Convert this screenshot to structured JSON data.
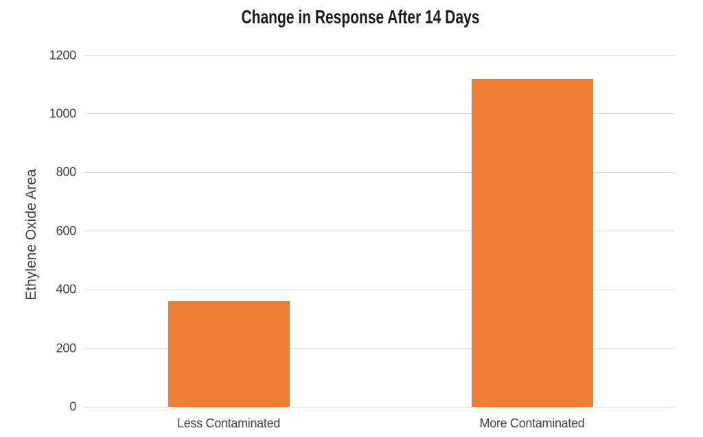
{
  "chart_data": {
    "type": "bar",
    "title": "Change in Response After 14 Days",
    "xlabel": "",
    "ylabel": "Ethylene Oxide Area",
    "categories": [
      "Less Contaminated",
      "More Contaminated"
    ],
    "values": [
      360,
      1120
    ],
    "ylim": [
      0,
      1200
    ],
    "yticks": [
      0,
      200,
      400,
      600,
      800,
      1000,
      1200
    ],
    "grid": "horizontal gridlines only, no axis lines, no legend",
    "legend_position": "none",
    "colors": {
      "bar": "#ED7D31",
      "gridline": "#D9D9D9",
      "title_text": "#1A1A1A",
      "axis_text": "#404040",
      "background": "#FFFFFF"
    }
  }
}
